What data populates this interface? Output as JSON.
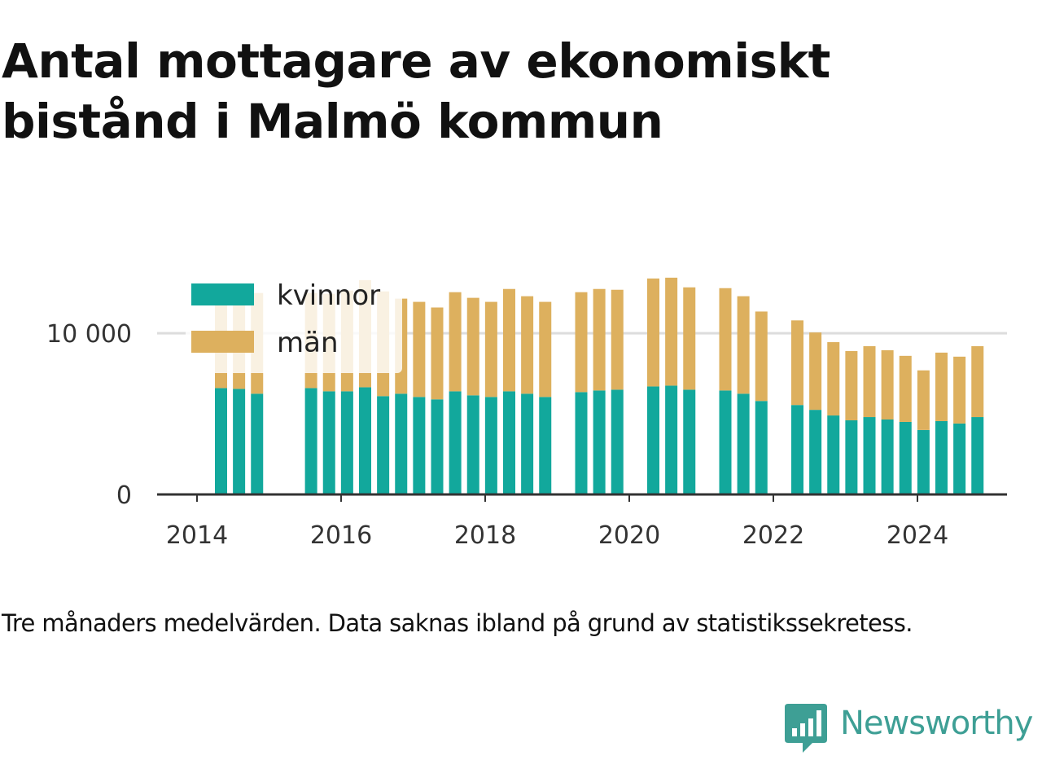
{
  "title": "Antal mottagare av ekonomiskt bistånd i Malmö kommun",
  "note": "Tre månaders medelvärden. Data saknas ibland på grund av statistikssekretess.",
  "brand": {
    "name": "Newsworthy",
    "icon": "newsworthy-logo-icon"
  },
  "colors": {
    "kvinnor": "#12a89c",
    "man": "#ddb05e",
    "grid": "#dddddd",
    "axis": "#333333",
    "brand": "#3e9f95"
  },
  "chart_data": {
    "type": "bar",
    "stacked": true,
    "title": "Antal mottagare av ekonomiskt bistånd i Malmö kommun",
    "xlabel": "",
    "ylabel": "",
    "ylim": [
      0,
      14000
    ],
    "x_ticks": [
      "2014",
      "2016",
      "2018",
      "2020",
      "2022",
      "2024"
    ],
    "y_ticks": [
      {
        "value": 0,
        "label": "0"
      },
      {
        "value": 10000,
        "label": "10 000"
      }
    ],
    "grid": true,
    "legend_position": "top-left",
    "x": [
      "2014-05",
      "2014-08",
      "2014-11",
      "2015-08",
      "2015-11",
      "2016-02",
      "2016-05",
      "2016-08",
      "2016-11",
      "2017-02",
      "2017-05",
      "2017-08",
      "2017-11",
      "2018-02",
      "2018-05",
      "2018-08",
      "2018-11",
      "2019-05",
      "2019-08",
      "2019-11",
      "2020-05",
      "2020-08",
      "2020-11",
      "2021-05",
      "2021-08",
      "2021-11",
      "2022-05",
      "2022-08",
      "2022-11",
      "2023-02",
      "2023-05",
      "2023-08",
      "2023-11",
      "2024-02",
      "2024-05",
      "2024-08",
      "2024-11"
    ],
    "series": [
      {
        "name": "kvinnor",
        "values": [
          6600,
          6550,
          6250,
          6600,
          6400,
          6400,
          6650,
          6100,
          6250,
          6050,
          5900,
          6400,
          6150,
          6050,
          6400,
          6250,
          6050,
          6350,
          6450,
          6500,
          6700,
          6750,
          6500,
          6450,
          6250,
          5800,
          5550,
          5250,
          4900,
          4600,
          4800,
          4650,
          4500,
          4000,
          4550,
          4400,
          4800
        ]
      },
      {
        "name": "män",
        "values": [
          5900,
          5800,
          6250,
          5900,
          6050,
          6250,
          6650,
          6500,
          5900,
          5900,
          5700,
          6150,
          6050,
          5900,
          6350,
          6050,
          5900,
          6200,
          6300,
          6200,
          6700,
          6700,
          6350,
          6350,
          6050,
          5550,
          5250,
          4800,
          4550,
          4300,
          4400,
          4300,
          4100,
          3700,
          4250,
          4150,
          4400
        ]
      }
    ]
  }
}
